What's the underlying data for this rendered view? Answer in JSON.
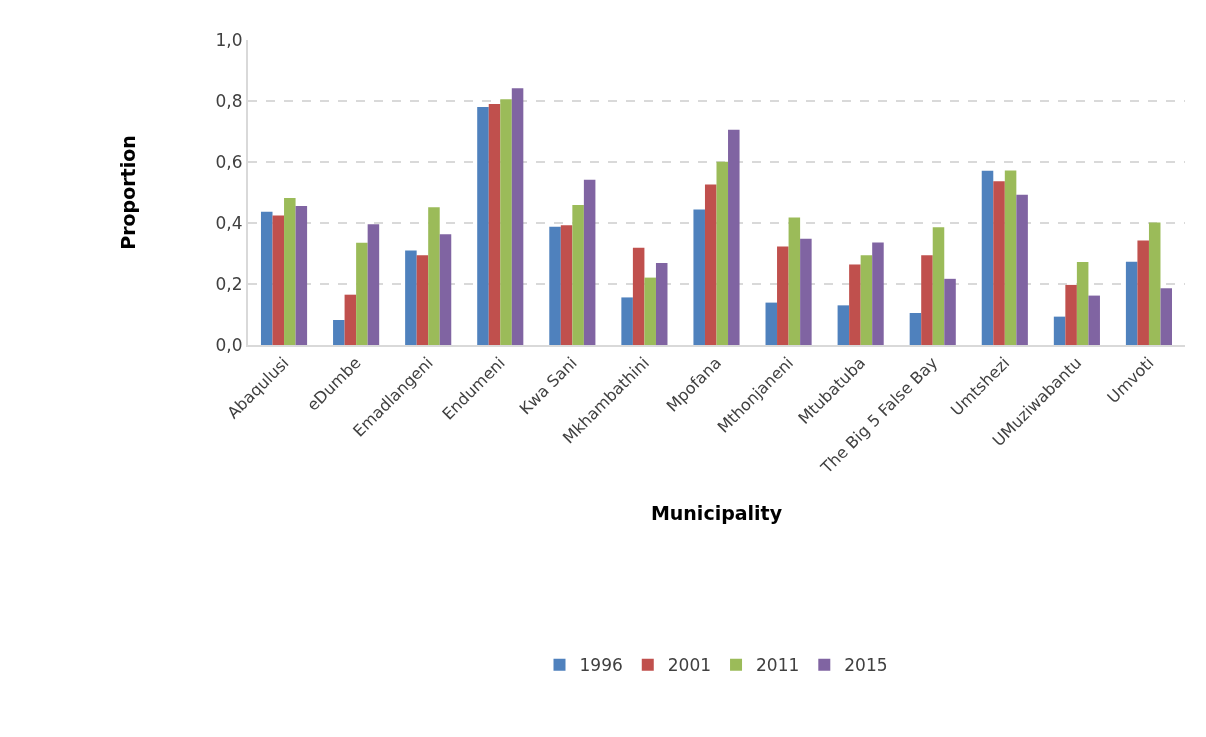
{
  "chart_data": {
    "type": "bar",
    "xlabel": "Municipality",
    "ylabel": "Proportion",
    "categories": [
      "Abaqulusi",
      "eDumbe",
      "Emadlangeni",
      "Endumeni",
      "Kwa Sani",
      "Mkhambathini",
      "Mpofana",
      "Mthonjaneni",
      "Mtubatuba",
      "The Big 5 False Bay",
      "Umtshezi",
      "UMuziwabantu",
      "Umvoti"
    ],
    "series": [
      {
        "name": "1996",
        "color": "#4f81bd",
        "values": [
          0.437,
          0.082,
          0.31,
          0.78,
          0.388,
          0.156,
          0.444,
          0.139,
          0.13,
          0.105,
          0.571,
          0.093,
          0.273
        ]
      },
      {
        "name": "2001",
        "color": "#c0504d",
        "values": [
          0.425,
          0.165,
          0.294,
          0.79,
          0.393,
          0.319,
          0.526,
          0.323,
          0.264,
          0.294,
          0.537,
          0.197,
          0.343
        ]
      },
      {
        "name": "2011",
        "color": "#9bbb59",
        "values": [
          0.482,
          0.335,
          0.452,
          0.806,
          0.459,
          0.221,
          0.601,
          0.418,
          0.294,
          0.386,
          0.572,
          0.272,
          0.402
        ]
      },
      {
        "name": "2015",
        "color": "#8064a2",
        "values": [
          0.456,
          0.396,
          0.363,
          0.842,
          0.542,
          0.269,
          0.706,
          0.348,
          0.336,
          0.217,
          0.493,
          0.162,
          0.186
        ]
      }
    ],
    "ylim": [
      0,
      1
    ],
    "yticks": [
      {
        "value": 0,
        "label": "0,0"
      },
      {
        "value": 0.2,
        "label": "0,2"
      },
      {
        "value": 0.4,
        "label": "0,4"
      },
      {
        "value": 0.6,
        "label": "0,6"
      },
      {
        "value": 0.8,
        "label": "0,8"
      },
      {
        "value": 1,
        "label": "1,0"
      }
    ],
    "grid": "y",
    "legend": "bottom"
  }
}
